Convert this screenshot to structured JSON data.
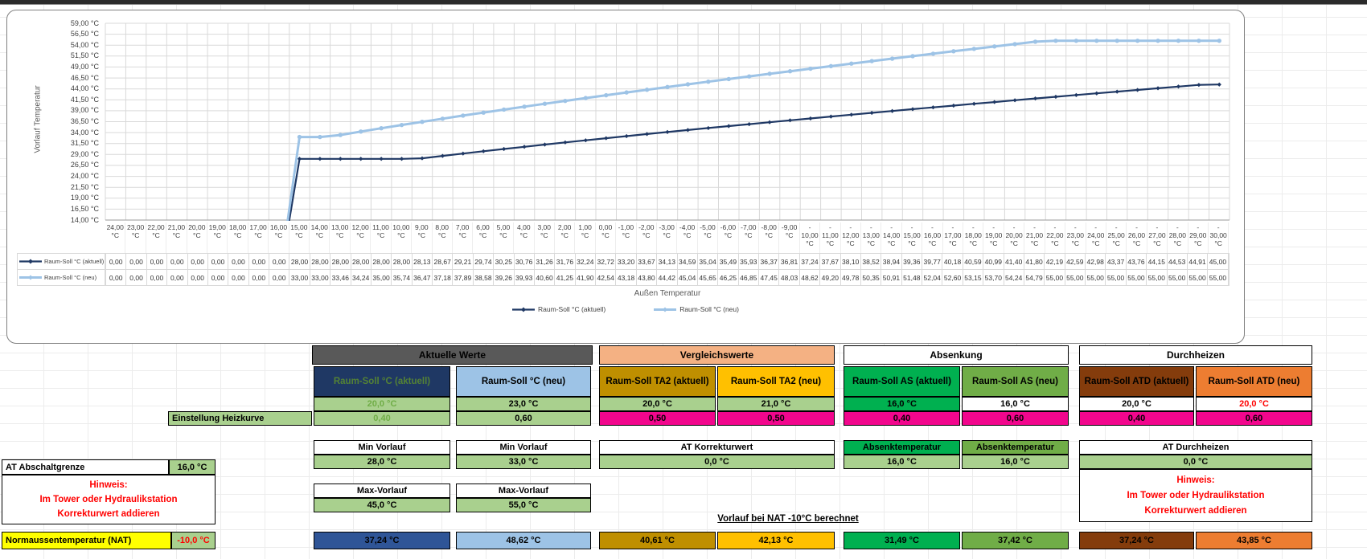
{
  "chart_data": {
    "type": "line",
    "title": "",
    "xlabel": "Außen Temperatur",
    "ylabel": "Vorlauf Temperatur",
    "ylim": [
      14,
      59
    ],
    "y_tick_step": 2.5,
    "y_tick_unit": " °C",
    "grid": true,
    "legend_position": "bottom",
    "categories": [
      24,
      23,
      22,
      21,
      20,
      19,
      18,
      17,
      16,
      15,
      14,
      13,
      12,
      11,
      10,
      9,
      8,
      7,
      6,
      5,
      4,
      3,
      2,
      1,
      0,
      -1,
      -2,
      -3,
      -4,
      -5,
      -6,
      -7,
      -8,
      -9,
      -10,
      -11,
      -12,
      -13,
      -14,
      -15,
      -16,
      -17,
      -18,
      -19,
      -20,
      -21,
      -22,
      -23,
      -24,
      -25,
      -26,
      -27,
      -28,
      -29,
      -30
    ],
    "series": [
      {
        "name": "Raum-Soll °C (aktuell)",
        "color": "#1F3864",
        "values": [
          0,
          0,
          0,
          0,
          0,
          0,
          0,
          0,
          0,
          28,
          28,
          28,
          28,
          28,
          28,
          28.13,
          28.67,
          29.21,
          29.74,
          30.25,
          30.76,
          31.26,
          31.76,
          32.24,
          32.72,
          33.2,
          33.67,
          34.13,
          34.59,
          35.04,
          35.49,
          35.93,
          36.37,
          36.81,
          37.24,
          37.67,
          38.1,
          38.52,
          38.94,
          39.36,
          39.77,
          40.18,
          40.59,
          40.99,
          41.4,
          41.8,
          42.19,
          42.59,
          42.98,
          43.37,
          43.76,
          44.15,
          44.53,
          44.91,
          45
        ]
      },
      {
        "name": "Raum-Soll °C (neu)",
        "color": "#9DC3E6",
        "values": [
          0,
          0,
          0,
          0,
          0,
          0,
          0,
          0,
          0,
          33,
          33,
          33.46,
          34.24,
          35,
          35.74,
          36.47,
          37.18,
          37.89,
          38.58,
          39.26,
          39.93,
          40.6,
          41.25,
          41.9,
          42.54,
          43.18,
          43.8,
          44.42,
          45.04,
          45.65,
          46.25,
          46.85,
          47.45,
          48.03,
          48.62,
          49.2,
          49.78,
          50.35,
          50.91,
          51.48,
          52.04,
          52.6,
          53.15,
          53.7,
          54.24,
          54.79,
          55,
          55,
          55,
          55,
          55,
          55,
          55,
          55,
          55
        ]
      }
    ]
  },
  "settings": {
    "groups": [
      {
        "title": "Aktuelle Werte",
        "title_bg": "#595959",
        "title_fg": "#000000",
        "columns": [
          {
            "header": "Raum-Soll °C (aktuell)",
            "header_bg": "#1F3864",
            "header_fg": "#548235",
            "temp": {
              "text": "20,0 °C",
              "bg": "#A9D08E",
              "fg": "#70AD47"
            },
            "curve": {
              "text": "0,40",
              "bg": "#A9D08E",
              "fg": "#70AD47"
            },
            "nat": {
              "text": "37,24 °C",
              "bg": "#2F5597",
              "fg": "#000000"
            }
          },
          {
            "header": "Raum-Soll °C (neu)",
            "header_bg": "#9DC3E6",
            "header_fg": "#000000",
            "temp": {
              "text": "23,0 °C",
              "bg": "#A9D08E",
              "fg": "#000000"
            },
            "curve": {
              "text": "0,60",
              "bg": "#A9D08E",
              "fg": "#000000"
            },
            "nat": {
              "text": "48,62 °C",
              "bg": "#9DC3E6",
              "fg": "#000000"
            }
          }
        ]
      },
      {
        "title": "Vergleichswerte",
        "title_bg": "#F4B183",
        "title_fg": "#000000",
        "columns": [
          {
            "header": "Raum-Soll TA2 (aktuell)",
            "header_bg": "#BF8F00",
            "header_fg": "#000000",
            "temp": {
              "text": "20,0 °C",
              "bg": "#A9D08E",
              "fg": "#000000"
            },
            "curve": {
              "text": "0,50",
              "bg": "#F2068D",
              "fg": "#000000"
            },
            "nat": {
              "text": "40,61 °C",
              "bg": "#BF8F00",
              "fg": "#000000"
            }
          },
          {
            "header": "Raum-Soll TA2 (neu)",
            "header_bg": "#FFC000",
            "header_fg": "#000000",
            "temp": {
              "text": "21,0 °C",
              "bg": "#A9D08E",
              "fg": "#000000"
            },
            "curve": {
              "text": "0,50",
              "bg": "#F2068D",
              "fg": "#000000"
            },
            "nat": {
              "text": "42,13 °C",
              "bg": "#FFC000",
              "fg": "#000000"
            }
          }
        ]
      },
      {
        "title": "Absenkung",
        "title_bg": "#FFFFFF",
        "title_fg": "#000000",
        "columns": [
          {
            "header": "Raum-Soll AS (aktuell)",
            "header_bg": "#00B050",
            "header_fg": "#000000",
            "temp": {
              "text": "16,0 °C",
              "bg": "#00B050",
              "fg": "#000000"
            },
            "curve": {
              "text": "0,40",
              "bg": "#F2068D",
              "fg": "#000000"
            },
            "nat": {
              "text": "31,49 °C",
              "bg": "#00B050",
              "fg": "#000000"
            }
          },
          {
            "header": "Raum-Soll AS (neu)",
            "header_bg": "#70AD47",
            "header_fg": "#000000",
            "temp": {
              "text": "16,0 °C",
              "bg": "#FFFFFF",
              "fg": "#000000"
            },
            "curve": {
              "text": "0,60",
              "bg": "#F2068D",
              "fg": "#000000"
            },
            "nat": {
              "text": "37,42 °C",
              "bg": "#70AD47",
              "fg": "#000000"
            }
          }
        ]
      },
      {
        "title": "Durchheizen",
        "title_bg": "#FFFFFF",
        "title_fg": "#000000",
        "columns": [
          {
            "header": "Raum-Soll ATD (aktuell)",
            "header_bg": "#843C0C",
            "header_fg": "#000000",
            "temp": {
              "text": "20,0 °C",
              "bg": "#FFFFFF",
              "fg": "#000000"
            },
            "curve": {
              "text": "0,40",
              "bg": "#F2068D",
              "fg": "#000000"
            },
            "nat": {
              "text": "37,24 °C",
              "bg": "#843C0C",
              "fg": "#000000"
            }
          },
          {
            "header": "Raum-Soll ATD (neu)",
            "header_bg": "#ED7D31",
            "header_fg": "#000000",
            "temp": {
              "text": "20,0 °C",
              "bg": "#FFFFFF",
              "fg": "#FF0000"
            },
            "curve": {
              "text": "0,60",
              "bg": "#F2068D",
              "fg": "#000000"
            },
            "nat": {
              "text": "43,85 °C",
              "bg": "#ED7D31",
              "fg": "#000000"
            }
          }
        ]
      }
    ],
    "heizkurve_label": "Einstellung Heizkurve",
    "blocks": [
      {
        "header": "Min Vorlauf",
        "value": "28,0 °C"
      },
      {
        "header": "Min Vorlauf",
        "value": "33,0 °C"
      },
      {
        "header": "AT Korrekturwert",
        "value": "0,0 °C"
      },
      {
        "header": "Absenktemperatur",
        "value": "16,0 °C",
        "header_bg": "#00B050"
      },
      {
        "header": "Absenktemperatur",
        "value": "16,0 °C",
        "header_bg": "#70AD47"
      },
      {
        "header": "AT Durchheizen",
        "value": "0,0 °C"
      },
      {
        "header": "Max-Vorlauf",
        "value": "45,0 °C"
      },
      {
        "header": "Max-Vorlauf",
        "value": "55,0 °C"
      }
    ],
    "at_abschaltgrenze": {
      "label": "AT Abschaltgrenze",
      "value": "16,0 °C"
    },
    "hinweis_left": {
      "lines": [
        "Hinweis:",
        "Im Tower oder Hydraulikstation",
        "Korrekturwert addieren"
      ]
    },
    "hinweis_right": {
      "lines": [
        "Hinweis:",
        "Im Tower oder Hydraulikstation",
        "Korrekturwert addieren"
      ]
    },
    "nat_row": {
      "label": "Normaussentemperatur (NAT)",
      "value": "-10,0 °C",
      "label_bg": "#FFFF00",
      "value_bg": "#A9D08E",
      "value_fg": "#FF0000"
    },
    "nat_title": "Vorlauf bei NAT -10°C berechnet"
  }
}
